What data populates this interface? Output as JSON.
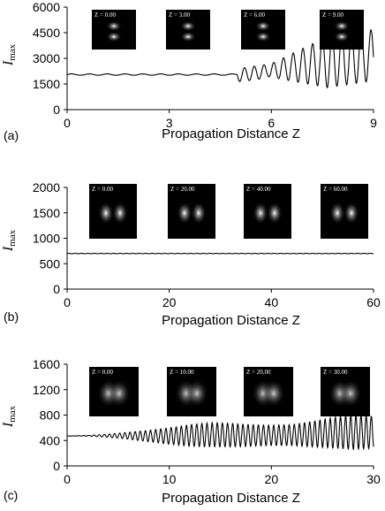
{
  "chart_data": [
    {
      "type": "line",
      "panel_label": "(a)",
      "xlabel": "Propagation Distance Z",
      "ylabel": "I",
      "ylabel_sub": "max",
      "xlim": [
        0,
        9
      ],
      "ylim": [
        0,
        6000
      ],
      "xticks": [
        0,
        3,
        6,
        9
      ],
      "yticks": [
        0,
        1500,
        3000,
        4500,
        6000
      ],
      "insets": [
        "Z = 0.00",
        "Z = 3.00",
        "Z = 6.00",
        "Z = 9.00"
      ],
      "x": [
        0.0,
        0.5,
        1.0,
        1.5,
        2.0,
        2.5,
        3.0,
        3.5,
        4.0,
        4.5,
        5.0,
        5.25,
        5.5,
        5.75,
        6.0,
        6.25,
        6.5,
        6.75,
        7.0,
        7.25,
        7.5,
        7.75,
        8.0,
        8.25,
        8.5,
        8.75,
        9.0
      ],
      "y": [
        2050,
        2050,
        2060,
        2050,
        2070,
        2060,
        2080,
        2100,
        2150,
        2300,
        2600,
        2900,
        3100,
        3400,
        3800,
        1200,
        4200,
        900,
        5000,
        1500,
        4500,
        2500,
        3800,
        1800,
        3000,
        2000,
        2800
      ]
    },
    {
      "type": "line",
      "panel_label": "(b)",
      "xlabel": "Propagation Distance Z",
      "ylabel": "I",
      "ylabel_sub": "max",
      "xlim": [
        0,
        60
      ],
      "ylim": [
        0,
        2000
      ],
      "xticks": [
        0,
        20,
        40,
        60
      ],
      "yticks": [
        0,
        500,
        1000,
        1500,
        2000
      ],
      "insets": [
        "Z = 0.00",
        "Z = 20.00",
        "Z = 40.00",
        "Z = 60.00"
      ],
      "x": [
        0,
        10,
        20,
        30,
        40,
        50,
        60
      ],
      "y": [
        700,
        700,
        700,
        700,
        700,
        700,
        700
      ]
    },
    {
      "type": "line",
      "panel_label": "(c)",
      "xlabel": "Propagation Distance Z",
      "ylabel": "I",
      "ylabel_sub": "max",
      "xlim": [
        0,
        30
      ],
      "ylim": [
        0,
        1600
      ],
      "xticks": [
        0,
        10,
        20,
        30
      ],
      "yticks": [
        0,
        400,
        800,
        1200,
        1600
      ],
      "insets": [
        "Z = 0.00",
        "Z = 10.00",
        "Z = 20.00",
        "Z = 30.00"
      ],
      "x": [
        0,
        2,
        4,
        6,
        8,
        10,
        12,
        14,
        16,
        18,
        20,
        22,
        24,
        26,
        28,
        30
      ],
      "y": [
        470,
        480,
        500,
        530,
        560,
        600,
        650,
        680,
        670,
        650,
        640,
        650,
        700,
        760,
        800,
        780
      ],
      "envelope_low": [
        470,
        470,
        450,
        420,
        380,
        340,
        310,
        300,
        300,
        310,
        320,
        320,
        300,
        280,
        260,
        280
      ]
    }
  ]
}
